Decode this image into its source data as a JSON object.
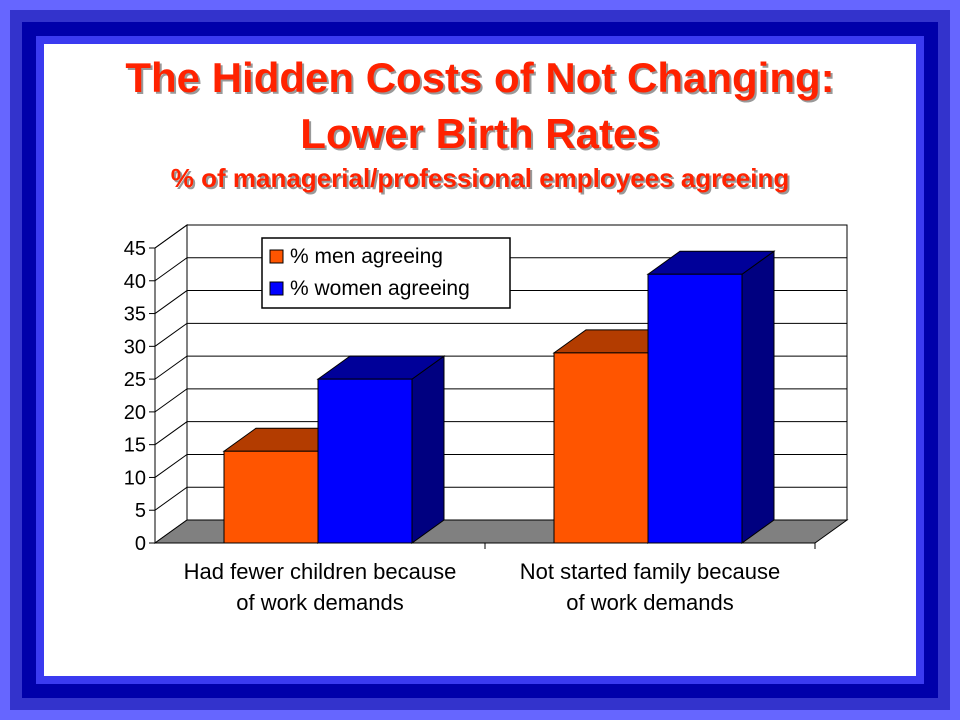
{
  "slide": {
    "title_line1": "The Hidden Costs of Not Changing:",
    "title_line2": "Lower Birth Rates",
    "subtitle": "% of managerial/professional employees agreeing"
  },
  "colors": {
    "men": "#ff5500",
    "women": "#0000ff",
    "title": "#ff2200",
    "background": "#6666ff"
  },
  "chart_data": {
    "type": "bar",
    "categories": [
      [
        "Had fewer children because",
        "of work demands"
      ],
      [
        "Not started family because",
        "of work demands"
      ]
    ],
    "series": [
      {
        "name": "% men agreeing",
        "values": [
          14,
          29
        ]
      },
      {
        "name": "% women agreeing",
        "values": [
          25,
          41
        ]
      }
    ],
    "ylim": [
      0,
      45
    ],
    "yticks": [
      "0",
      "5",
      "10",
      "15",
      "20",
      "25",
      "30",
      "35",
      "40",
      "45"
    ],
    "grid": true,
    "legend_position": "top-left",
    "style": "3d-column"
  }
}
